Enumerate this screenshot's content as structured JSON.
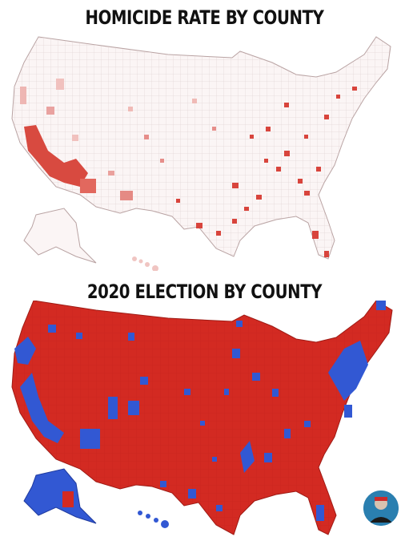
{
  "panels": {
    "top": {
      "title": "HOMICIDE RATE BY COUNTY"
    },
    "bottom": {
      "title": "2020 ELECTION BY COUNTY"
    }
  },
  "colors": {
    "homicide_low": "#f3e4e4",
    "homicide_mid": "#e89a9a",
    "homicide_high": "#d8443c",
    "republican": "#d32a22",
    "democrat": "#3258d3",
    "outline": "#d9c9c9"
  },
  "avatar": {
    "icon": "user-avatar-icon"
  }
}
